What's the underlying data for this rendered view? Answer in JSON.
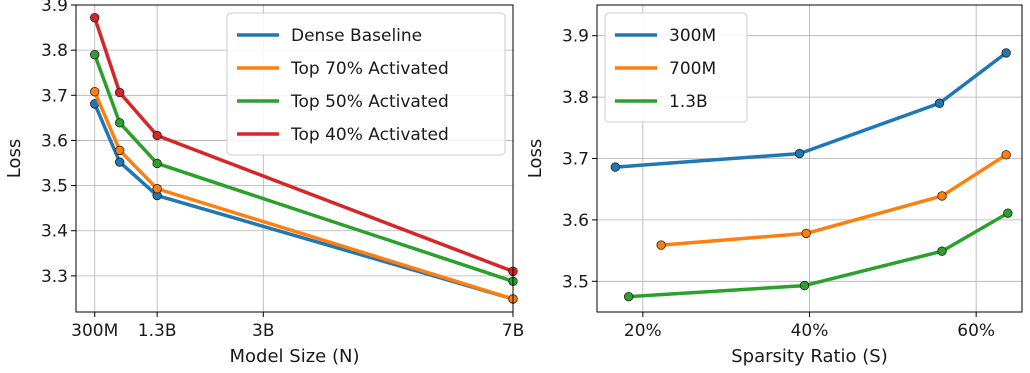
{
  "chart_data": [
    {
      "type": "line",
      "xlabel": "Model Size (N)",
      "ylabel": "Loss",
      "x_scale": "linear",
      "xlim": [
        0.0,
        7.0
      ],
      "ylim": [
        3.22,
        3.9
      ],
      "xticks": [
        {
          "value": 0.3,
          "label": "300M"
        },
        {
          "value": 1.3,
          "label": "1.3B"
        },
        {
          "value": 3.0,
          "label": "3B"
        },
        {
          "value": 7.0,
          "label": "7B"
        }
      ],
      "yticks": [
        3.3,
        3.4,
        3.5,
        3.6,
        3.7,
        3.8,
        3.9
      ],
      "grid": true,
      "legend_position": "top-right",
      "series": [
        {
          "name": "Dense Baseline",
          "color": "#1f77b4",
          "points": [
            [
              0.3,
              3.681
            ],
            [
              0.7,
              3.552
            ],
            [
              1.3,
              3.478
            ],
            [
              7.0,
              3.249
            ]
          ]
        },
        {
          "name": "Top 70% Activated",
          "color": "#ff7f0e",
          "points": [
            [
              0.3,
              3.708
            ],
            [
              0.7,
              3.578
            ],
            [
              1.3,
              3.493
            ],
            [
              7.0,
              3.249
            ]
          ]
        },
        {
          "name": "Top 50% Activated",
          "color": "#2ca02c",
          "points": [
            [
              0.3,
              3.79
            ],
            [
              0.7,
              3.639
            ],
            [
              1.3,
              3.549
            ],
            [
              7.0,
              3.288
            ]
          ]
        },
        {
          "name": "Top 40% Activated",
          "color": "#d62728",
          "points": [
            [
              0.3,
              3.872
            ],
            [
              0.7,
              3.706
            ],
            [
              1.3,
              3.611
            ],
            [
              7.0,
              3.31
            ]
          ]
        }
      ]
    },
    {
      "type": "line",
      "xlabel": "Sparsity Ratio (S)",
      "ylabel": "Loss",
      "x_unit": "percent",
      "xlim": [
        14.5,
        65.5
      ],
      "ylim": [
        3.45,
        3.95
      ],
      "xticks": [
        {
          "value": 20,
          "label": "20%"
        },
        {
          "value": 40,
          "label": "40%"
        },
        {
          "value": 60,
          "label": "60%"
        }
      ],
      "yticks": [
        3.5,
        3.6,
        3.7,
        3.8,
        3.9
      ],
      "grid": true,
      "legend_position": "top-left",
      "series": [
        {
          "name": "300M",
          "color": "#1f77b4",
          "points": [
            [
              16.7,
              3.686
            ],
            [
              38.8,
              3.708
            ],
            [
              55.6,
              3.79
            ],
            [
              63.6,
              3.872
            ]
          ]
        },
        {
          "name": "700M",
          "color": "#ff7f0e",
          "points": [
            [
              22.2,
              3.559
            ],
            [
              39.6,
              3.578
            ],
            [
              55.9,
              3.639
            ],
            [
              63.6,
              3.706
            ]
          ]
        },
        {
          "name": "1.3B",
          "color": "#2ca02c",
          "points": [
            [
              18.3,
              3.475
            ],
            [
              39.4,
              3.493
            ],
            [
              55.9,
              3.549
            ],
            [
              63.8,
              3.611
            ]
          ]
        }
      ]
    }
  ]
}
